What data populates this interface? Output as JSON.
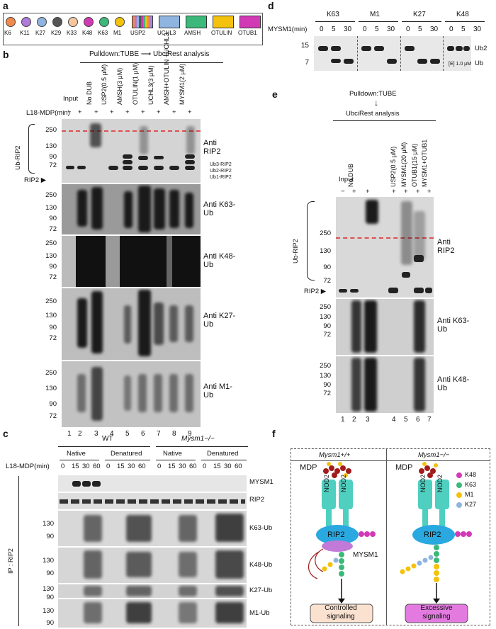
{
  "panel_labels": {
    "a": "a",
    "b": "b",
    "c": "c",
    "d": "d",
    "e": "e",
    "f": "f"
  },
  "legend_a": {
    "chains": [
      {
        "label": "K6",
        "color": "#f08a4b"
      },
      {
        "label": "K11",
        "color": "#b07ad8"
      },
      {
        "label": "K27",
        "color": "#8fb4e0"
      },
      {
        "label": "K29",
        "color": "#555555"
      },
      {
        "label": "K33",
        "color": "#f5c6a0"
      },
      {
        "label": "K48",
        "color": "#d23ab5"
      },
      {
        "label": "K63",
        "color": "#3cb87a"
      },
      {
        "label": "M1",
        "color": "#f4c20d"
      }
    ],
    "dubs": [
      {
        "label": "USP2",
        "color": "multi"
      },
      {
        "label": "UCHL3",
        "color": "#8fb4e0"
      },
      {
        "label": "AMSH",
        "color": "#3cb87a"
      },
      {
        "label": "OTULIN",
        "color": "#f4c20d"
      },
      {
        "label": "OTUB1",
        "color": "#d23ab5"
      }
    ]
  },
  "panel_b": {
    "header": "Pulldown:TUBE",
    "arrow_to": "UbciRest analysis",
    "columns": [
      "Input",
      "No DUB",
      "USP2(0.5 μM)",
      "AMSH(3 μM)",
      "OTULIN(1 μM)",
      "UCHL3(3 μM)",
      "AMSH+OTULIN +UCHL3",
      "MYSM1(2 μM)"
    ],
    "l18_label": "L18-MDP(min)",
    "l18_signs": [
      "−",
      "+",
      "+",
      "+",
      "+",
      "+",
      "+",
      "+",
      "+"
    ],
    "ub_rip2": "Ub-RIP2",
    "rip2": "RIP2",
    "mw_top": [
      "250",
      "130",
      "90",
      "72"
    ],
    "band_labels": [
      "Ub3-RIP2",
      "Ub2-RIP2",
      "Ub1-RIP2"
    ],
    "antibodies": [
      "Anti RIP2",
      "Anti K63-Ub",
      "Anti K48-Ub",
      "Anti K27-Ub",
      "Anti M1-Ub"
    ],
    "lanes": [
      "1",
      "2",
      "3",
      "4",
      "5",
      "6",
      "7",
      "8",
      "9"
    ]
  },
  "panel_c": {
    "wt": "WT",
    "ko": "Mysm1−/−",
    "native": "Native",
    "denatured": "Denatured",
    "l18_label": "L18-MDP(min)",
    "times": [
      "0",
      "15",
      "30",
      "60"
    ],
    "ip": "IP : RIP2",
    "blots": [
      "MYSM1",
      "RIP2",
      "K63-Ub",
      "K48-Ub",
      "K27-Ub",
      "M1-Ub"
    ],
    "mw": [
      "130",
      "90"
    ]
  },
  "panel_d": {
    "chains": [
      "K63",
      "M1",
      "K27",
      "K48"
    ],
    "mysm1_label": "MYSM1(min)",
    "times": [
      "0",
      "5",
      "30"
    ],
    "mw": [
      "15",
      "7"
    ],
    "ub2": "Ub2",
    "ub": "Ub",
    "enzyme": "[E] 1.0 μM"
  },
  "panel_e": {
    "header": "Pulldown:TUBE",
    "analysis": "UbciRest analysis",
    "columns": [
      "Input",
      "No DUB",
      "USP2(0.5 μM)",
      "MYSM1(20 μM)",
      "OTUB1(15 μM)",
      "MYSM1+OTUB1"
    ],
    "signs": [
      "−",
      "+",
      "+",
      "+",
      "+",
      "+",
      "+"
    ],
    "ub_rip2": "Ub-RIP2",
    "rip2": "RIP2",
    "mw_top": [
      "250",
      "130",
      "90",
      "72"
    ],
    "antibodies": [
      "Anti RIP2",
      "Anti K63-Ub",
      "Anti K48-Ub"
    ],
    "lanes": [
      "1",
      "2",
      "3",
      "4",
      "5",
      "6",
      "7"
    ]
  },
  "panel_f": {
    "wt": "Mysm1+/+",
    "ko": "Mysm1−/−",
    "mdp": "MDP",
    "nod2": "NOD2",
    "rip2": "RIP2",
    "mysm1": "MYSM1",
    "legend": [
      {
        "label": "K48",
        "color": "#d23ab5"
      },
      {
        "label": "K63",
        "color": "#3cb87a"
      },
      {
        "label": "M1",
        "color": "#f4c20d"
      },
      {
        "label": "K27",
        "color": "#8fb4e0"
      }
    ],
    "controlled": "Controlled signaling",
    "excessive": "Excessive signaling"
  }
}
